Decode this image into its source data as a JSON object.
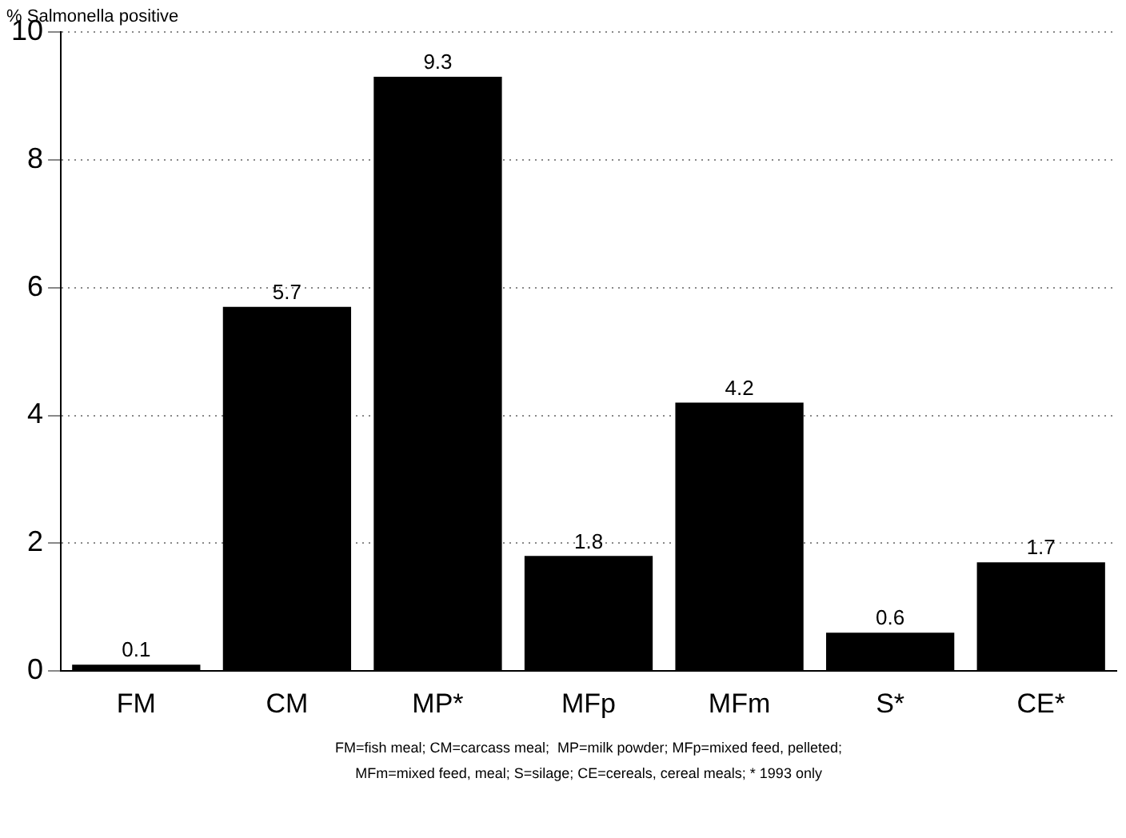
{
  "chart_data": {
    "type": "bar",
    "ylabel": "% Salmonella positive",
    "categories": [
      "FM",
      "CM",
      "MP*",
      "MFp",
      "MFm",
      "S*",
      "CE*"
    ],
    "values": [
      0.1,
      5.7,
      9.3,
      1.8,
      4.2,
      0.6,
      1.7
    ],
    "color": "#000000",
    "ylim": [
      0,
      10
    ],
    "yticks": [
      0,
      2,
      4,
      6,
      8,
      10
    ],
    "grid": "y",
    "data_labels": true,
    "legend": false,
    "annotations": [
      "FM=fish meal; CM=carcass meal;  MP=milk powder; MFp=mixed feed, pelleted;",
      "MFm=mixed feed, meal; S=silage; CE=cereals, cereal meals; * 1993 only"
    ]
  }
}
